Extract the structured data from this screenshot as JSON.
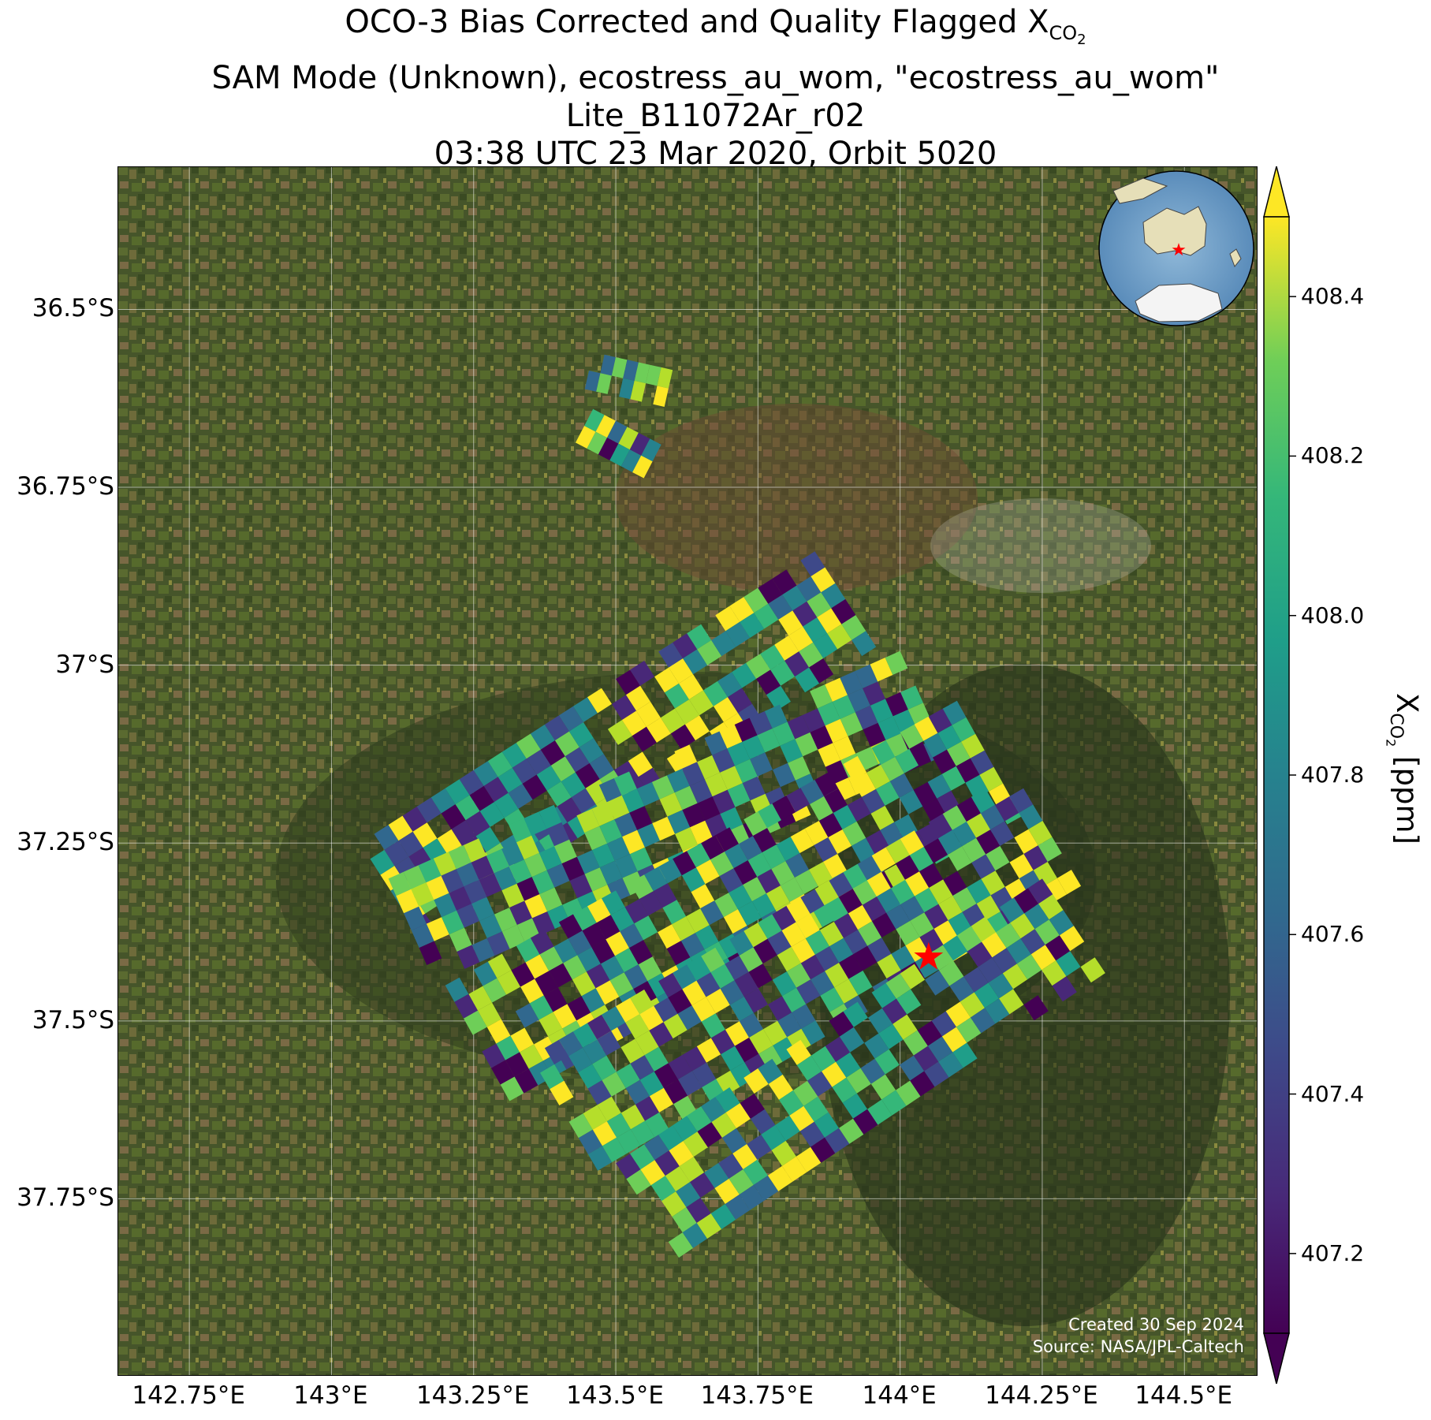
{
  "title": {
    "line1_prefix": "OCO-3 Bias Corrected and Quality Flagged X",
    "line1_sub": "CO",
    "line1_sub2": "2",
    "line2": "SAM Mode (Unknown), ecostress_au_wom, \"ecostress_au_wom\"",
    "line3": "Lite_B11072Ar_r02",
    "line4": "03:38 UTC 23 Mar 2020, Orbit 5020"
  },
  "map": {
    "lon_ticks": [
      "142.75°E",
      "143°E",
      "143.25°E",
      "143.5°E",
      "143.75°E",
      "144°E",
      "144.25°E",
      "144.5°E"
    ],
    "lat_ticks": [
      "36.5°S",
      "36.75°S",
      "37°S",
      "37.25°S",
      "37.5°S",
      "37.75°S"
    ],
    "lon_values": [
      142.75,
      143.0,
      143.25,
      143.5,
      143.75,
      144.0,
      144.25,
      144.5
    ],
    "lat_values": [
      -36.5,
      -36.75,
      -37.0,
      -37.25,
      -37.5,
      -37.75
    ],
    "lon_range": [
      142.625,
      144.63
    ],
    "lat_range": [
      -36.3,
      -38.0
    ],
    "target_marker": {
      "name": "target-star",
      "lon": 144.05,
      "lat": -37.41,
      "color": "#ff0000"
    },
    "inset_globe": {
      "center": "Australia",
      "marker_color": "#ff0000"
    },
    "credit_line1": "Created 30 Sep 2024",
    "credit_line2": "Source: NASA/JPL-Caltech"
  },
  "colorbar": {
    "label_prefix": "X",
    "label_sub": "CO",
    "label_sub2": "2",
    "label_suffix": " [ppm]",
    "ticks": [
      "407.2",
      "407.4",
      "407.6",
      "407.8",
      "408.0",
      "408.2",
      "408.4"
    ],
    "tick_values": [
      407.2,
      407.4,
      407.6,
      407.8,
      408.0,
      408.2,
      408.4
    ],
    "range": [
      407.1,
      408.5
    ],
    "colormap": "viridis",
    "extend": "both"
  },
  "chart_data": {
    "type": "heatmap",
    "description_units": "XCO2 ppm",
    "scale": "viridis",
    "vmin": 407.1,
    "vmax": 408.5,
    "swaths": [
      {
        "name": "swath-north-1",
        "start": [
          143.46,
          -36.56
        ],
        "end": [
          143.6,
          -36.585
        ],
        "rows": 2,
        "cols": 7
      },
      {
        "name": "swath-north-2",
        "start": [
          143.46,
          -36.64
        ],
        "end": [
          143.58,
          -36.69
        ],
        "rows": 2,
        "cols": 6
      },
      {
        "name": "swath-main-1",
        "start": [
          143.05,
          -37.25
        ],
        "end": [
          143.85,
          -36.84
        ],
        "rows": 6,
        "cols": 32
      },
      {
        "name": "swath-main-2",
        "start": [
          143.1,
          -37.3
        ],
        "end": [
          144.0,
          -36.98
        ],
        "rows": 6,
        "cols": 34
      },
      {
        "name": "swath-main-3",
        "start": [
          143.2,
          -37.45
        ],
        "end": [
          144.1,
          -37.05
        ],
        "rows": 7,
        "cols": 36
      },
      {
        "name": "swath-main-4",
        "start": [
          143.35,
          -37.55
        ],
        "end": [
          144.2,
          -37.15
        ],
        "rows": 7,
        "cols": 34
      },
      {
        "name": "swath-main-5",
        "start": [
          143.5,
          -37.7
        ],
        "end": [
          144.25,
          -37.3
        ],
        "rows": 6,
        "cols": 30
      }
    ]
  }
}
